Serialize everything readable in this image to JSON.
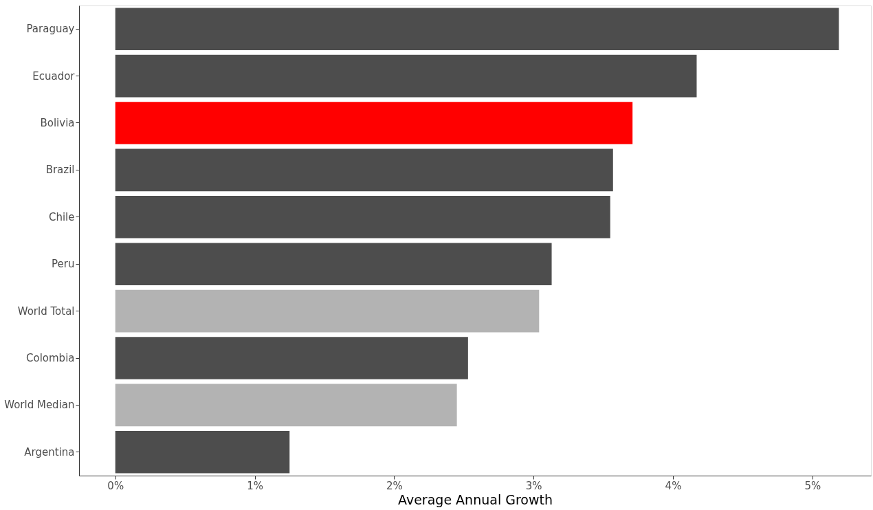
{
  "chart_data": {
    "type": "bar",
    "orientation": "horizontal",
    "xlabel": "Average Annual Growth",
    "categories": [
      "Paraguay",
      "Ecuador",
      "Bolivia",
      "Brazil",
      "Chile",
      "Peru",
      "World Total",
      "Colombia",
      "World Median",
      "Argentina"
    ],
    "values": [
      5.19,
      4.17,
      3.71,
      3.57,
      3.55,
      3.13,
      3.04,
      2.53,
      2.45,
      1.25
    ],
    "colors": [
      "#4d4d4d",
      "#4d4d4d",
      "#ff0000",
      "#4d4d4d",
      "#4d4d4d",
      "#4d4d4d",
      "#b3b3b3",
      "#4d4d4d",
      "#b3b3b3",
      "#4d4d4d"
    ],
    "xlim": [
      -0.26,
      5.42
    ],
    "xticks": [
      {
        "value": 0,
        "label": "0%"
      },
      {
        "value": 1,
        "label": "1%"
      },
      {
        "value": 2,
        "label": "2%"
      },
      {
        "value": 3,
        "label": "3%"
      },
      {
        "value": 4,
        "label": "4%"
      },
      {
        "value": 5,
        "label": "5%"
      }
    ],
    "grid": false
  }
}
